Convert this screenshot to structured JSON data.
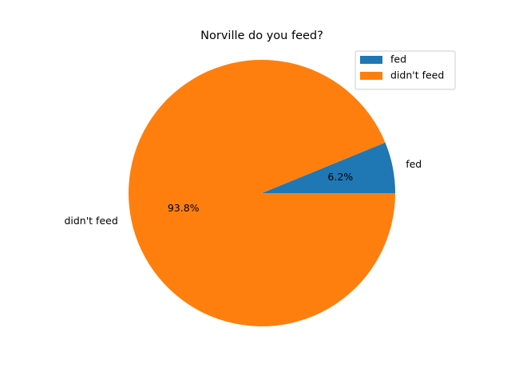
{
  "chart_data": {
    "type": "pie",
    "title": "Norville do you feed?",
    "labels": [
      "fed",
      "didn't feed"
    ],
    "values": [
      6.2,
      93.8
    ],
    "percent_labels": [
      "6.2%",
      "93.8%"
    ],
    "colors": [
      "#1f77b4",
      "#ff7f0e"
    ],
    "legend": {
      "location": "top-right",
      "entries": [
        "fed",
        "didn't feed"
      ]
    }
  }
}
